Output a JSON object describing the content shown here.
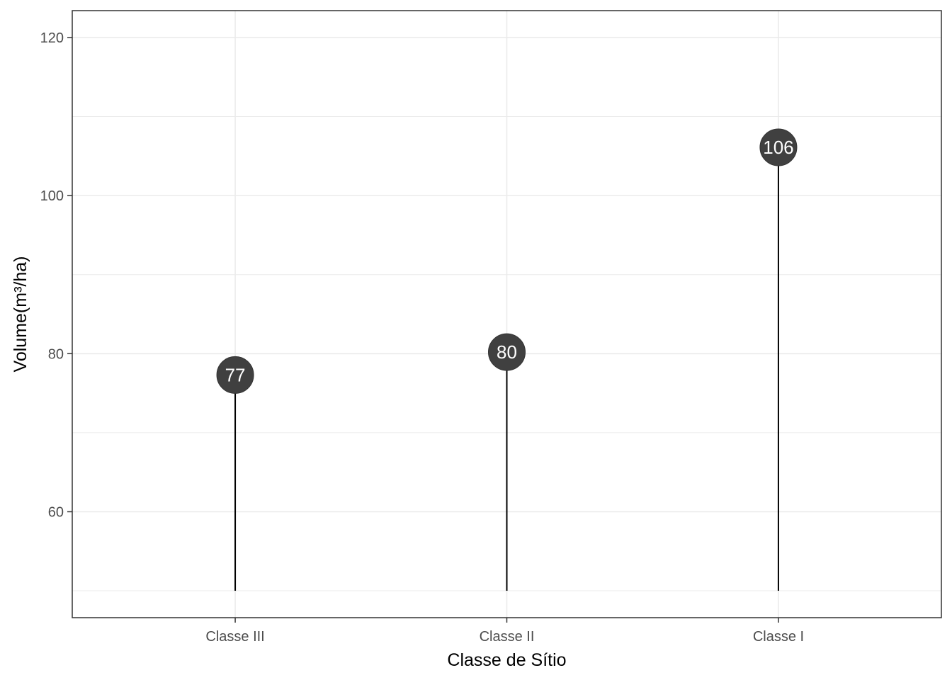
{
  "chart_data": {
    "type": "lollipop",
    "categories": [
      "Classe III",
      "Classe II",
      "Classe I"
    ],
    "values": [
      77.3,
      80.2,
      106.1
    ],
    "value_labels": [
      "77",
      "80",
      "106"
    ],
    "xlabel": "Classe de Sítio",
    "ylabel": "Volume(m³/ha)",
    "ylim": [
      46.6,
      123.4
    ],
    "baseline": 50,
    "y_ticks": [
      60,
      80,
      100,
      120
    ],
    "y_minor_ticks": [
      50,
      70,
      90,
      110
    ],
    "grid": true,
    "theme": "bw"
  },
  "colors": {
    "point": "#404040",
    "stem": "#000000",
    "label": "#ffffff",
    "grid": "#ebebeb",
    "panel_border": "#333333",
    "tick_text": "#4d4d4d"
  }
}
